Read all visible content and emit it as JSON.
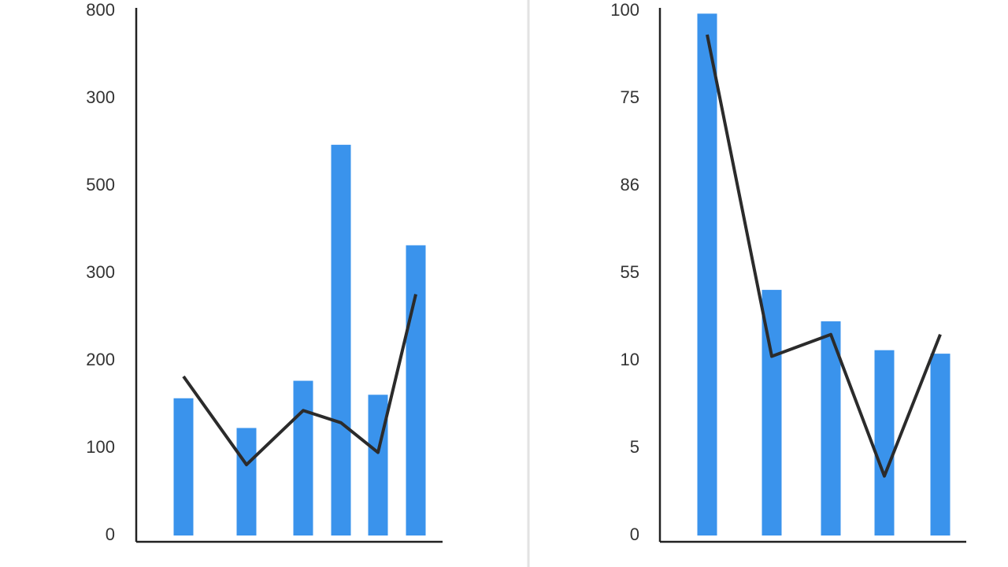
{
  "chart_data": [
    {
      "type": "bar",
      "categories": [
        null,
        null,
        null,
        null,
        null,
        null
      ],
      "series": [
        {
          "type": "bar",
          "color": "#3a93ec",
          "values": [
            157,
            123,
            177,
            447,
            161,
            332
          ]
        },
        {
          "type": "line",
          "color": "#2b2b2b",
          "values": [
            182,
            81,
            143,
            129,
            95,
            276
          ]
        }
      ],
      "ylim": [
        0,
        600
      ],
      "yticks": [
        0,
        100,
        200,
        300,
        {
          "value": 400,
          "label": "500"
        },
        {
          "value": 500,
          "label": "300"
        },
        {
          "value": 600,
          "label": "800"
        }
      ]
    },
    {
      "type": "bar",
      "categories": [
        null,
        null,
        null,
        null,
        null
      ],
      "series": [
        {
          "type": "bar",
          "color": "#3a93ec",
          "values": [
            59.7,
            28.1,
            24.5,
            21.2,
            20.8
          ]
        },
        {
          "type": "line",
          "color": "#2b2b2b",
          "values": [
            57.3,
            20.5,
            23.0,
            6.8,
            23.0
          ]
        }
      ],
      "ylim": [
        0,
        60
      ],
      "yticks": [
        0,
        {
          "value": 10,
          "label": "5"
        },
        {
          "value": 20,
          "label": "10"
        },
        {
          "value": 30,
          "label": "55"
        },
        {
          "value": 40,
          "label": "86"
        },
        {
          "value": 50,
          "label": "75"
        },
        {
          "value": 60,
          "label": "100"
        }
      ]
    }
  ]
}
